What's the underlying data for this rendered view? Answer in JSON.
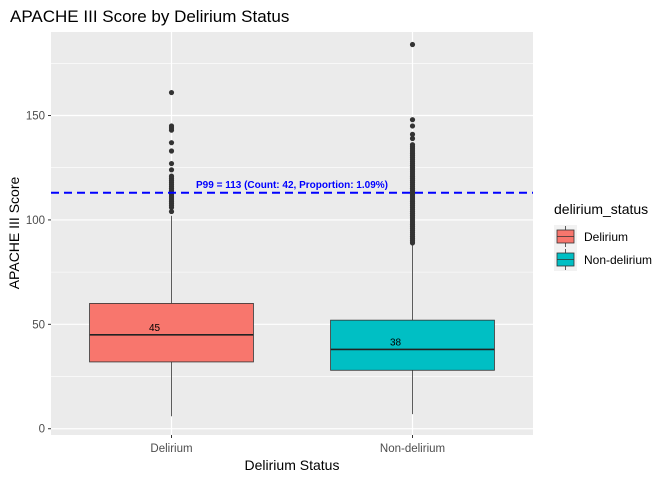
{
  "chart_data": {
    "type": "box",
    "title": "APACHE III Score by Delirium Status",
    "xlabel": "Delirium Status",
    "ylabel": "APACHE III Score",
    "ylim": [
      -3,
      190
    ],
    "yticks": [
      0,
      50,
      100,
      150
    ],
    "categories": [
      "Delirium",
      "Non-delirium"
    ],
    "series": [
      {
        "name": "Delirium",
        "color": "#f8766d",
        "min": 6,
        "q1": 32,
        "median": 45,
        "q3": 60,
        "max": 102,
        "median_label": "45",
        "outliers": [
          104,
          106,
          107,
          108,
          109,
          110,
          111,
          112,
          113,
          114,
          115,
          116,
          117,
          118,
          119,
          120,
          121,
          124,
          127,
          133,
          137,
          143,
          144,
          145,
          161
        ]
      },
      {
        "name": "Non-delirium",
        "color": "#00bfc4",
        "min": 7,
        "q1": 28,
        "median": 38,
        "q3": 52,
        "max": 88,
        "median_label": "38",
        "outliers": [
          89,
          90,
          91,
          92,
          93,
          94,
          95,
          96,
          97,
          98,
          99,
          100,
          101,
          102,
          103,
          104,
          105,
          106,
          107,
          108,
          109,
          110,
          111,
          112,
          113,
          114,
          115,
          116,
          117,
          118,
          119,
          120,
          121,
          122,
          123,
          124,
          125,
          126,
          127,
          128,
          129,
          130,
          131,
          132,
          133,
          134,
          135,
          136,
          139,
          141,
          145,
          148,
          184
        ]
      }
    ],
    "reference_line": {
      "value": 113,
      "label": "P99 = 113 (Count: 42, Proportion: 1.09%)",
      "color": "#0000ff",
      "style": "dashed"
    },
    "legend": {
      "title": "delirium_status",
      "placement": "right",
      "entries": [
        "Delirium",
        "Non-delirium"
      ]
    },
    "grid": true,
    "panel_background": "#ebebeb"
  }
}
